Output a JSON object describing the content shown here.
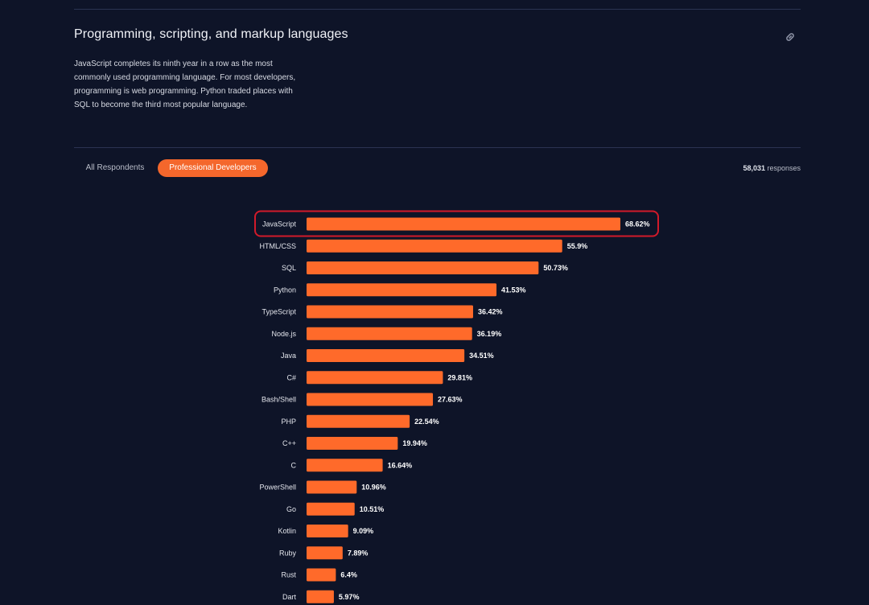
{
  "section": {
    "title": "Programming, scripting, and markup languages",
    "description": "JavaScript completes its ninth year in a row as the most commonly used programming language. For most developers, programming is web programming. Python traded places with SQL to become the third most popular language.",
    "link_icon": "link-icon"
  },
  "tabs": {
    "all_label": "All Respondents",
    "pro_label": "Professional Developers",
    "active": "Professional Developers"
  },
  "responses": {
    "count": "58,031",
    "suffix": " responses"
  },
  "colors": {
    "background": "#0e1428",
    "bar": "#ff6a2a",
    "accent_tab": "#f4672c",
    "highlight_border": "#d11a2a"
  },
  "chart_data": {
    "type": "bar",
    "orientation": "horizontal",
    "categories": [
      "JavaScript",
      "HTML/CSS",
      "SQL",
      "Python",
      "TypeScript",
      "Node.js",
      "Java",
      "C#",
      "Bash/Shell",
      "PHP",
      "C++",
      "C",
      "PowerShell",
      "Go",
      "Kotlin",
      "Ruby",
      "Rust",
      "Dart"
    ],
    "values": [
      68.62,
      55.9,
      50.73,
      41.53,
      36.42,
      36.19,
      34.51,
      29.81,
      27.63,
      22.54,
      19.94,
      16.64,
      10.96,
      10.51,
      9.09,
      7.89,
      6.4,
      5.97
    ],
    "value_labels": [
      "68.62%",
      "55.9%",
      "50.73%",
      "41.53%",
      "36.42%",
      "36.19%",
      "34.51%",
      "29.81%",
      "27.63%",
      "22.54%",
      "19.94%",
      "16.64%",
      "10.96%",
      "10.51%",
      "9.09%",
      "7.89%",
      "6.4%",
      "5.97%"
    ],
    "highlighted": "JavaScript",
    "grid": false,
    "legend": "none"
  }
}
